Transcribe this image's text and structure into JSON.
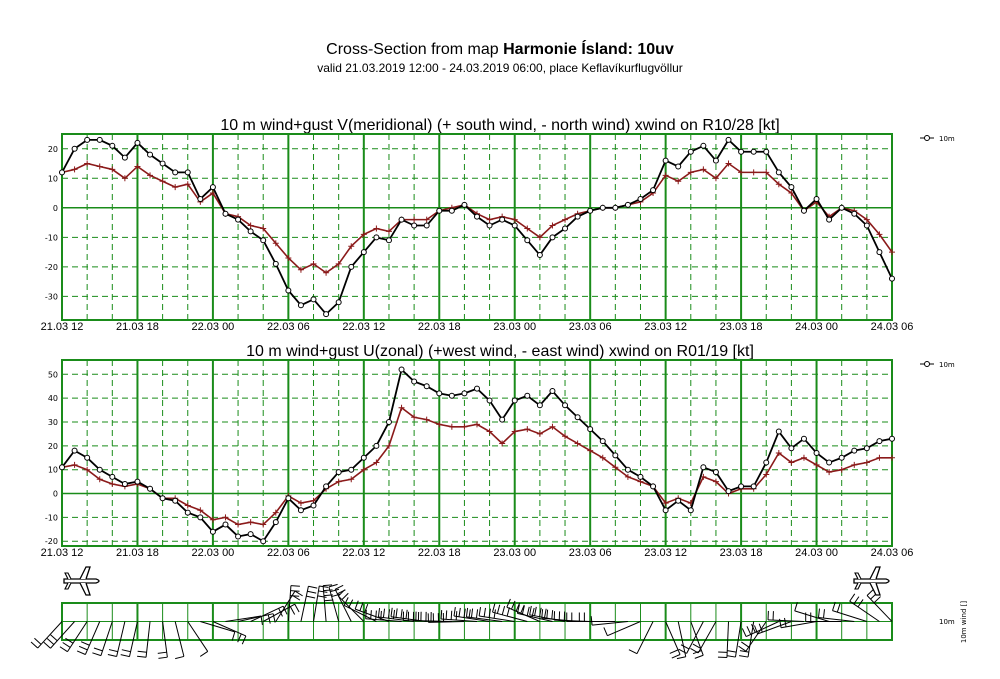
{
  "header": {
    "title_prefix": "Cross-Section from map ",
    "title_bold": "Harmonie Ísland: 10uv",
    "subtitle": "valid 21.03.2019 12:00 - 24.03.2019 06:00, place Keflavíkurflugvöllur"
  },
  "colors": {
    "grid": "#1a8c1a",
    "mean": "#000000",
    "gust": "#8b1a1a"
  },
  "x_tick_labels": [
    "21.03 12",
    "21.03 18",
    "22.03 00",
    "22.03 06",
    "22.03 12",
    "22.03 18",
    "23.03 00",
    "23.03 06",
    "23.03 12",
    "23.03 18",
    "24.03 00",
    "24.03 06"
  ],
  "wind_row": {
    "legend_label": "10m",
    "axis_label": "10m wind []"
  },
  "chart_data": [
    {
      "type": "line",
      "title": "10 m wind+gust V(meridional) (+ south wind, - north wind) xwind on R10/28 [kt]",
      "x_unit": "hours from 21.03 12",
      "xlim": [
        0,
        66
      ],
      "ylim": [
        -38,
        25
      ],
      "yticks": [
        -30,
        -20,
        -10,
        0,
        10,
        20
      ],
      "grid": true,
      "legend_position": "top-right",
      "legend": [
        "10m"
      ],
      "x": [
        0,
        1,
        2,
        3,
        4,
        5,
        6,
        7,
        8,
        9,
        10,
        11,
        12,
        13,
        14,
        15,
        16,
        17,
        18,
        19,
        20,
        21,
        22,
        23,
        24,
        25,
        26,
        27,
        28,
        29,
        30,
        31,
        32,
        33,
        34,
        35,
        36,
        37,
        38,
        39,
        40,
        41,
        42,
        43,
        44,
        45,
        46,
        47,
        48,
        49,
        50,
        51,
        52,
        53,
        54,
        55,
        56,
        57,
        58,
        59,
        60,
        61,
        62,
        63,
        64,
        65,
        66
      ],
      "series": [
        {
          "name": "10m",
          "values": [
            12,
            20,
            23,
            23,
            21,
            17,
            22,
            18,
            15,
            12,
            12,
            3,
            7,
            -2,
            -4,
            -8,
            -11,
            -19,
            -28,
            -33,
            -31,
            -36,
            -32,
            -20,
            -15,
            -10,
            -11,
            -4,
            -6,
            -6,
            -1,
            -1,
            1,
            -3,
            -6,
            -4,
            -6,
            -11,
            -16,
            -10,
            -7,
            -3,
            -1,
            0,
            0,
            1,
            3,
            6,
            16,
            14,
            19,
            21,
            16,
            23,
            19,
            19,
            19,
            12,
            7,
            -1,
            3,
            -4,
            0,
            -2,
            -6,
            -15,
            -24
          ]
        },
        {
          "values": [
            12,
            13,
            15,
            14,
            13,
            10,
            14,
            11,
            9,
            7,
            8,
            2,
            5,
            -2,
            -3,
            -6,
            -7,
            -12,
            -17,
            -21,
            -19,
            -22,
            -19,
            -13,
            -9,
            -7,
            -8,
            -4,
            -4,
            -4,
            -1,
            0,
            1,
            -2,
            -4,
            -3,
            -4,
            -7,
            -10,
            -6,
            -4,
            -2,
            -1,
            0,
            0,
            1,
            2,
            5,
            11,
            9,
            12,
            13,
            10,
            15,
            12,
            12,
            12,
            8,
            5,
            -1,
            2,
            -3,
            0,
            -1,
            -4,
            -9,
            -15
          ]
        }
      ]
    },
    {
      "type": "line",
      "title": "10 m wind+gust U(zonal) (+west wind, - east wind) xwind on R01/19 [kt]",
      "x_unit": "hours from 21.03 12",
      "xlim": [
        0,
        66
      ],
      "ylim": [
        -22,
        56
      ],
      "yticks": [
        -20,
        -10,
        0,
        10,
        20,
        30,
        40,
        50
      ],
      "grid": true,
      "legend_position": "top-right",
      "legend": [
        "10m"
      ],
      "x": [
        0,
        1,
        2,
        3,
        4,
        5,
        6,
        7,
        8,
        9,
        10,
        11,
        12,
        13,
        14,
        15,
        16,
        17,
        18,
        19,
        20,
        21,
        22,
        23,
        24,
        25,
        26,
        27,
        28,
        29,
        30,
        31,
        32,
        33,
        34,
        35,
        36,
        37,
        38,
        39,
        40,
        41,
        42,
        43,
        44,
        45,
        46,
        47,
        48,
        49,
        50,
        51,
        52,
        53,
        54,
        55,
        56,
        57,
        58,
        59,
        60,
        61,
        62,
        63,
        64,
        65,
        66
      ],
      "series": [
        {
          "name": "10m",
          "values": [
            11,
            18,
            15,
            10,
            7,
            4,
            5,
            2,
            -2,
            -3,
            -8,
            -10,
            -16,
            -13,
            -18,
            -17,
            -20,
            -12,
            -2,
            -7,
            -5,
            3,
            9,
            10,
            15,
            20,
            30,
            52,
            47,
            45,
            42,
            41,
            42,
            44,
            39,
            31,
            39,
            41,
            37,
            43,
            37,
            32,
            27,
            22,
            16,
            10,
            7,
            3,
            -7,
            -3,
            -7,
            11,
            9,
            1,
            3,
            3,
            13,
            26,
            19,
            23,
            17,
            13,
            15,
            18,
            19,
            22,
            23
          ]
        },
        {
          "values": [
            11,
            12,
            10,
            6,
            4,
            3,
            4,
            2,
            -2,
            -2,
            -5,
            -7,
            -11,
            -10,
            -13,
            -12,
            -13,
            -8,
            -1,
            -4,
            -3,
            2,
            5,
            6,
            10,
            13,
            20,
            36,
            32,
            31,
            29,
            28,
            28,
            29,
            26,
            21,
            26,
            27,
            25,
            28,
            24,
            21,
            18,
            15,
            11,
            7,
            5,
            3,
            -4,
            -2,
            -4,
            7,
            5,
            0,
            2,
            2,
            8,
            17,
            13,
            15,
            12,
            9,
            10,
            12,
            13,
            15,
            15
          ]
        }
      ]
    }
  ]
}
